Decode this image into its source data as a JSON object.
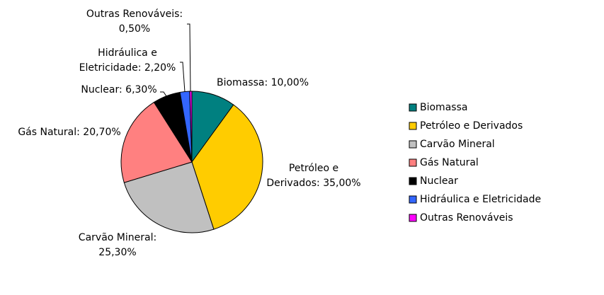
{
  "chart_data": {
    "type": "pie",
    "categories": [
      "Biomassa",
      "Petróleo e Derivados",
      "Carvão Mineral",
      "Gás Natural",
      "Nuclear",
      "Hidráulica e Eletricidade",
      "Outras Renováveis"
    ],
    "values": [
      10,
      35,
      25.3,
      20.7,
      6.3,
      2.2,
      0.5
    ],
    "value_labels": [
      "Biomassa: 10,00%",
      "Petróleo e Derivados: 35,00%",
      "Carvão Mineral: 25,30%",
      "Gás Natural: 20,70%",
      "Nuclear: 6,30%",
      "Hidráulica e Eletricidade: 2,20%",
      "Outras Renováveis: 0,50%"
    ],
    "colors": [
      "#008080",
      "#ffcc00",
      "#c0c0c0",
      "#ff8080",
      "#000000",
      "#3366ff",
      "#ff00ff"
    ],
    "legend": "right"
  }
}
